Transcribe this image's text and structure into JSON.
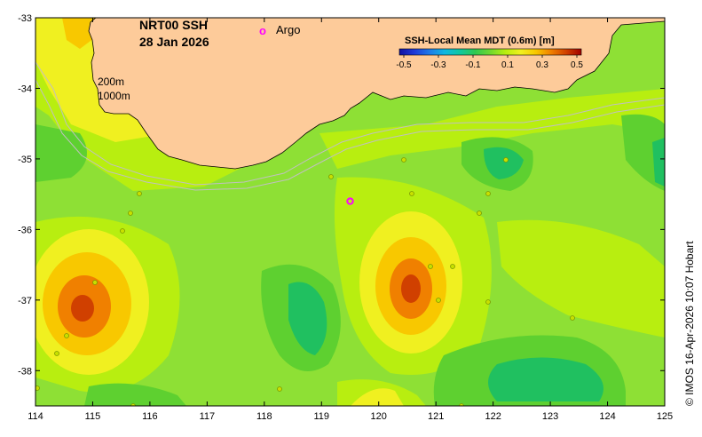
{
  "title": {
    "line1": "NRT00 SSH",
    "line2": "28 Jan 2026"
  },
  "argo_legend": {
    "marker": "o",
    "label": "Argo",
    "color": "#ff00ff"
  },
  "isobaths": [
    "200m",
    "1000m"
  ],
  "colorbar": {
    "title": "SSH-Local Mean MDT (0.6m) [m]",
    "tick_labels": [
      "-0.5",
      "-0.3",
      "-0.1",
      "0.1",
      "0.3",
      "0.5"
    ],
    "min": -0.5,
    "max": 0.5,
    "colors": [
      "#1010a0",
      "#1f3bd8",
      "#1e7be8",
      "#10b8e0",
      "#10c8a0",
      "#30c850",
      "#70d830",
      "#b8ee10",
      "#f0f020",
      "#f8c800",
      "#f08000",
      "#d04000",
      "#a00000"
    ]
  },
  "credit": "© IMOS 16-Apr-2026 10:07 Hobart",
  "axes": {
    "x_ticks": [
      "114",
      "115",
      "116",
      "117",
      "118",
      "119",
      "120",
      "121",
      "122",
      "123",
      "124",
      "125"
    ],
    "y_ticks": [
      "-33",
      "-34",
      "-35",
      "-36",
      "-37",
      "-38"
    ]
  },
  "chart_data": {
    "type": "heatmap",
    "title": "NRT00 SSH 28 Jan 2026",
    "xlim": [
      114,
      125
    ],
    "ylim": [
      -38.5,
      -33
    ],
    "land_color": "#fdcb9a",
    "argo_floats": [
      {
        "lon": 119.5,
        "lat": -35.6
      }
    ],
    "ssh_features": [
      {
        "lon": 114.9,
        "lat": -37.2,
        "peak_value": 0.4
      },
      {
        "lon": 120.55,
        "lat": -36.85,
        "peak_value": 0.4
      },
      {
        "lon": 115.2,
        "lat": -33.3,
        "peak_value": 0.2
      },
      {
        "lon": 118.8,
        "lat": -37.1,
        "peak_value": -0.08
      },
      {
        "lon": 122.3,
        "lat": -35.0,
        "peak_value": -0.02
      },
      {
        "lon": 123.2,
        "lat": -38.2,
        "peak_value": -0.05
      }
    ]
  }
}
